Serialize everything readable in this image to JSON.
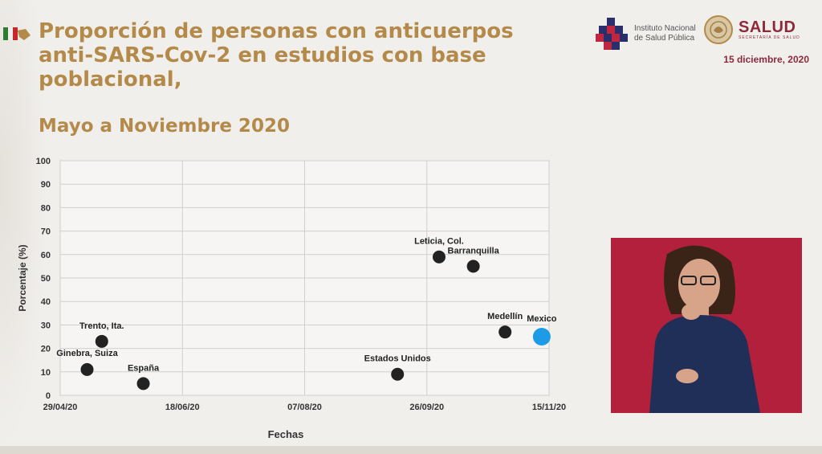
{
  "header": {
    "title": "Proporción de personas con anticuerpos\nanti-SARS-Cov-2 en estudios con base\npoblacional,",
    "subtitle": "Mayo a Noviembre 2020",
    "date": "15 diciembre, 2020",
    "insp_label": "Instituto Nacional\nde Salud Pública",
    "salud_label": "SALUD",
    "salud_sub": "SECRETARÍA DE SALUD"
  },
  "colors": {
    "title": "#b48a4a",
    "brand": "#8c2a3b",
    "point": "#222222",
    "highlight": "#1e9be6",
    "video_bg": "#b3203c"
  },
  "chart_data": {
    "type": "scatter",
    "title": "",
    "xlabel": "Fechas",
    "ylabel": "Porcentaje (%)",
    "x_ticks": [
      "29/04/20",
      "18/06/20",
      "07/08/20",
      "26/09/20",
      "15/11/20"
    ],
    "xlim": [
      "2020-04-29",
      "2020-11-15"
    ],
    "ylim": [
      0,
      100
    ],
    "y_ticks": [
      0,
      10,
      20,
      30,
      40,
      50,
      60,
      70,
      80,
      90,
      100
    ],
    "grid": true,
    "points": [
      {
        "label": "Ginebra, Suiza",
        "x": "2020-05-10",
        "y": 11,
        "highlight": false
      },
      {
        "label": "Trento, Ita.",
        "x": "2020-05-16",
        "y": 23,
        "highlight": false
      },
      {
        "label": "España",
        "x": "2020-06-02",
        "y": 5,
        "highlight": false
      },
      {
        "label": "Estados Unidos",
        "x": "2020-09-14",
        "y": 9,
        "highlight": false
      },
      {
        "label": "Leticia, Col.",
        "x": "2020-10-01",
        "y": 59,
        "highlight": false
      },
      {
        "label": "Barranquilla",
        "x": "2020-10-15",
        "y": 55,
        "highlight": false
      },
      {
        "label": "Medellín",
        "x": "2020-10-28",
        "y": 27,
        "highlight": false
      },
      {
        "label": "Mexico",
        "x": "2020-11-12",
        "y": 25,
        "highlight": true
      }
    ]
  }
}
